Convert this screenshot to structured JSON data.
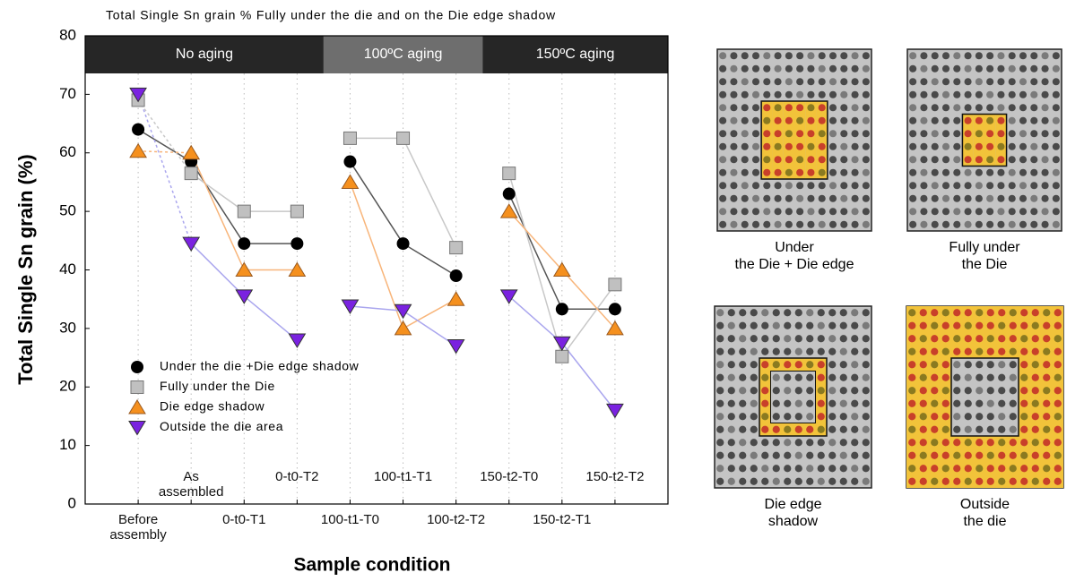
{
  "chart_data": {
    "type": "line",
    "title": "Total Single Sn grain % Fully under the die and on the Die edge shadow",
    "xlabel": "Sample condition",
    "ylabel": "Total Single Sn grain (%)",
    "bands": [
      "No aging",
      "100ºC aging",
      "150ºC aging"
    ],
    "categories": [
      "Before assembly",
      "As assembled",
      "0-t0-T1",
      "0-t0-T2",
      "100-t1-T0",
      "100-t1-T1",
      "100-t2-T2",
      "150-t2-T0",
      "150-t2-T1",
      "150-t2-T2"
    ],
    "ylim": [
      0,
      80
    ],
    "yticks": [
      0,
      10,
      20,
      30,
      40,
      50,
      60,
      70,
      80
    ],
    "legend": "lower left",
    "series": [
      {
        "name": "Under the die +Die edge shadow",
        "color": "#000000",
        "line_color": "#555555",
        "marker": "circle",
        "values": [
          64,
          58.5,
          44.5,
          44.5,
          58.5,
          44.5,
          39,
          53,
          33.3,
          33.3
        ]
      },
      {
        "name": "Fully under the Die",
        "color": "#c0c0c0",
        "line_color": "#c8c8c8",
        "marker": "square",
        "values": [
          69,
          56.5,
          50,
          50,
          62.5,
          62.5,
          43.8,
          56.5,
          25.2,
          37.5
        ]
      },
      {
        "name": "Die edge shadow",
        "color": "#f5901e",
        "line_color": "#f8b57a",
        "marker": "triangle-up",
        "values": [
          60.3,
          60,
          40,
          40,
          55,
          30,
          35,
          50,
          40,
          30
        ]
      },
      {
        "name": "Outside the die area",
        "color": "#7a22e0",
        "line_color": "#aaa6ee",
        "marker": "triangle-down",
        "values": [
          70,
          44.5,
          35.5,
          28,
          33.8,
          33,
          27,
          35.5,
          27.5,
          16
        ]
      }
    ]
  },
  "images": [
    {
      "caption": [
        "Under",
        "the Die + Die edge"
      ]
    },
    {
      "caption": [
        "Fully under",
        "the Die"
      ]
    },
    {
      "caption": [
        "Die edge",
        "shadow"
      ]
    },
    {
      "caption": [
        "Outside",
        "the die"
      ]
    }
  ]
}
